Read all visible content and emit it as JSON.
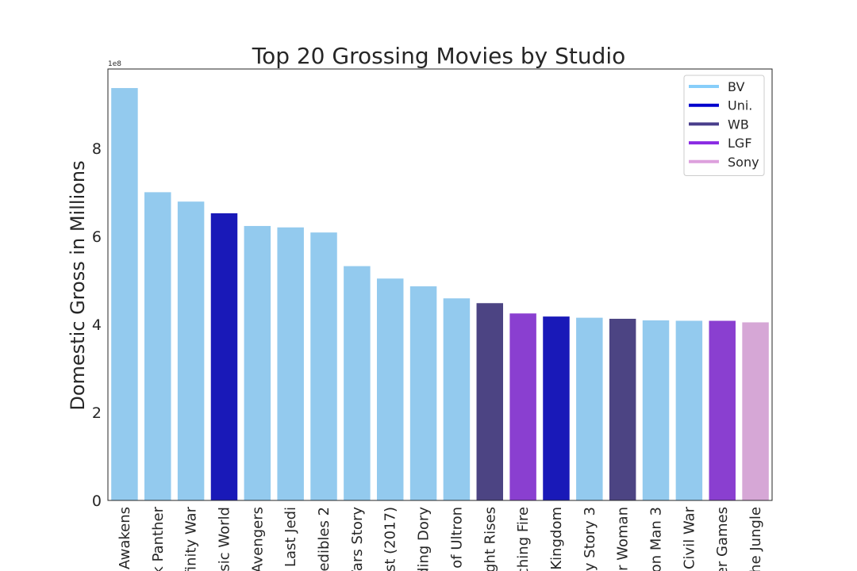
{
  "chart_data": {
    "type": "bar",
    "title": "Top 20 Grossing Movies by Studio",
    "ylabel": "Domestic Gross in Millions",
    "xlabel": "",
    "y_offset_label": "1e8",
    "ylim": [
      0,
      980000000
    ],
    "y_ticks": [
      0,
      200000000,
      400000000,
      600000000,
      800000000
    ],
    "y_tick_labels": [
      "0",
      "2",
      "4",
      "6",
      "8"
    ],
    "grid": false,
    "legend_position": "top-right",
    "categories": [
      "Awakens",
      "k Panther",
      "finity War",
      "sic World",
      "Avengers",
      "Last Jedi",
      "redibles 2",
      "Vars Story",
      "ast (2017)",
      "ding Dory",
      "of Ultron",
      "ght Rises",
      "ching Fire",
      "Kingdom",
      "by Story 3",
      "r Woman",
      "on Man 3",
      "Civil War",
      "er Games",
      "he Jungle"
    ],
    "values": [
      936700000,
      700100000,
      678800000,
      652300000,
      623400000,
      620200000,
      608600000,
      532200000,
      504000000,
      486300000,
      459000000,
      448100000,
      424700000,
      417700000,
      415000000,
      412600000,
      409000000,
      408100000,
      408000000,
      404500000
    ],
    "studios": [
      "BV",
      "BV",
      "BV",
      "Uni.",
      "BV",
      "BV",
      "BV",
      "BV",
      "BV",
      "BV",
      "BV",
      "WB",
      "LGF",
      "Uni.",
      "BV",
      "WB",
      "BV",
      "BV",
      "LGF",
      "Sony"
    ],
    "legend": [
      {
        "name": "BV",
        "color": "#87CEFA"
      },
      {
        "name": "Uni.",
        "color": "#0000CD"
      },
      {
        "name": "WB",
        "color": "#483D8B"
      },
      {
        "name": "LGF",
        "color": "#8A2BE2"
      },
      {
        "name": "Sony",
        "color": "#DDA0DD"
      }
    ],
    "bar_colors": {
      "BV": "#93CAEE",
      "Uni.": "#1919B8",
      "WB": "#4C4483",
      "LGF": "#8A3FD0",
      "Sony": "#D6A7D6"
    }
  }
}
